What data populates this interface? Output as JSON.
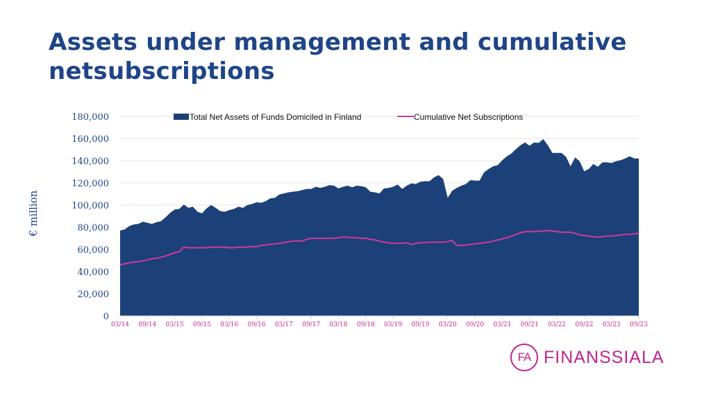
{
  "slide": {
    "title": "Assets under management and cumulative netsubscriptions"
  },
  "logo": {
    "mark": "FA",
    "text": "FINANSSIALA"
  },
  "colors": {
    "title": "#1f4588",
    "area": "#1c4178",
    "line": "#d6369d",
    "accent": "#c2248f"
  },
  "chart_data": {
    "type": "area",
    "ylabel": "€ million",
    "ylim": [
      0,
      180000
    ],
    "yticks": [
      "0",
      "20,000",
      "40,000",
      "60,000",
      "80,000",
      "100,000",
      "120,000",
      "140,000",
      "160,000",
      "180,000"
    ],
    "xticks": [
      "03/14",
      "09/14",
      "03/15",
      "09/15",
      "03/16",
      "09/16",
      "03/17",
      "09/17",
      "03/18",
      "09/18",
      "03/19",
      "09/19",
      "03/20",
      "09/20",
      "03/21",
      "09/21",
      "03/22",
      "09/22",
      "03/23",
      "09/23"
    ],
    "grid": true,
    "legend_position": "top",
    "series": [
      {
        "name": "Total Net Assets of Funds Domiciled in Finland",
        "kind": "area",
        "values": [
          77000,
          78000,
          81000,
          82500,
          83000,
          85000,
          84000,
          83000,
          84500,
          85500,
          89000,
          93000,
          96000,
          96500,
          100500,
          97500,
          98500,
          94000,
          92500,
          97000,
          100000,
          97500,
          94500,
          94000,
          95500,
          96500,
          98500,
          97500,
          100000,
          101000,
          102500,
          102000,
          103500,
          106000,
          106500,
          109500,
          110500,
          111500,
          112000,
          112500,
          113500,
          114500,
          114500,
          116500,
          115500,
          116500,
          118000,
          117500,
          115000,
          116500,
          117500,
          116000,
          117500,
          117000,
          116000,
          112000,
          111500,
          110500,
          115000,
          115500,
          116500,
          118500,
          114500,
          117500,
          119500,
          119000,
          121000,
          121500,
          121500,
          125000,
          127000,
          123500,
          106500,
          113000,
          115500,
          117500,
          119000,
          122500,
          122000,
          122000,
          129500,
          132500,
          135000,
          136000,
          140500,
          144000,
          146500,
          150500,
          154000,
          156500,
          153500,
          156500,
          156000,
          159500,
          154000,
          147000,
          147000,
          147000,
          143500,
          135000,
          143000,
          139500,
          130500,
          132500,
          137000,
          134500,
          138500,
          138500,
          138000,
          139500,
          140500,
          142000,
          144000,
          142000,
          142000
        ]
      },
      {
        "name": "Cumulative Net Subscriptions",
        "kind": "line",
        "values": [
          46000,
          47000,
          48000,
          48500,
          49000,
          49500,
          50500,
          51500,
          52000,
          53000,
          54000,
          55500,
          57000,
          58000,
          62000,
          61500,
          61500,
          61500,
          61500,
          61500,
          62000,
          62000,
          62000,
          62000,
          61500,
          61500,
          62000,
          62000,
          62000,
          62500,
          62500,
          63500,
          64000,
          64500,
          65000,
          65500,
          66000,
          67000,
          67500,
          67500,
          67500,
          69000,
          70000,
          70000,
          70000,
          70000,
          70000,
          70000,
          70500,
          71000,
          71000,
          70500,
          70500,
          70000,
          70000,
          69000,
          68500,
          67500,
          66500,
          66000,
          65500,
          65500,
          65500,
          66000,
          64500,
          65500,
          66000,
          66000,
          66500,
          66500,
          66500,
          66500,
          67000,
          68000,
          63500,
          63500,
          64000,
          64500,
          65000,
          65500,
          66000,
          66500,
          67500,
          68500,
          69500,
          70500,
          72000,
          73500,
          75000,
          76000,
          76000,
          76000,
          76500,
          76500,
          77000,
          76500,
          76000,
          75500,
          75500,
          75500,
          74500,
          73000,
          72500,
          72000,
          71500,
          71000,
          71500,
          72000,
          72000,
          72500,
          73000,
          73500,
          73500,
          74000,
          74500
        ]
      }
    ]
  }
}
